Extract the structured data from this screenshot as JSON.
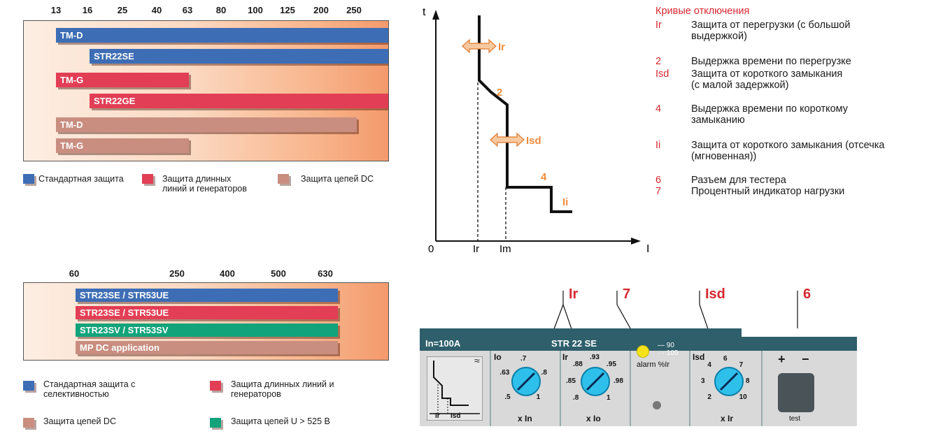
{
  "chart1": {
    "ticks": [
      "13",
      "16",
      "25",
      "40",
      "63",
      "80",
      "100",
      "125",
      "200",
      "250"
    ],
    "bars": [
      {
        "label": "TM-D",
        "color": "#3d6db5"
      },
      {
        "label": "STR22SE",
        "color": "#3d6db5"
      },
      {
        "label": "TM-G",
        "color": "#e23e55"
      },
      {
        "label": "STR22GE",
        "color": "#e23e55"
      },
      {
        "label": "TM-D",
        "color": "#c98e80"
      },
      {
        "label": "TM-G",
        "color": "#c98e80"
      }
    ],
    "legend": [
      {
        "text": "Стандартная защита",
        "color": "#3d6db5"
      },
      {
        "text": "Защита  длинных\nлиний и генераторов",
        "color": "#e23e55"
      },
      {
        "text": "Защита цепей DC",
        "color": "#c98e80"
      }
    ]
  },
  "chart2": {
    "ticks": [
      "60",
      "250",
      "400",
      "500",
      "630"
    ],
    "bars": [
      {
        "label": "STR23SE / STR53UE",
        "color": "#3d6db5"
      },
      {
        "label": "STR23SE / STR53UE",
        "color": "#e23e55"
      },
      {
        "label": "STR23SV / STR53SV",
        "color": "#12a37a"
      },
      {
        "label": "MP DC application",
        "color": "#c98e80"
      }
    ],
    "legend": [
      {
        "text": "Стандартная защита с\nселективностью",
        "color": "#3d6db5"
      },
      {
        "text": "Защита длинных линий и\nгенераторов",
        "color": "#e23e55"
      },
      {
        "text": "Защита цепей DC",
        "color": "#c98e80"
      },
      {
        "text": "Защита цепей U > 525 B",
        "color": "#12a37a"
      }
    ]
  },
  "curve": {
    "t_label": "t",
    "i_label": "I",
    "zero": "0",
    "ir": "Ir",
    "im": "Im",
    "labels": {
      "ir": "Ir",
      "n2": "2",
      "isd": "Isd",
      "n4": "4",
      "ii": "Ii"
    },
    "accent": "#f08a3c"
  },
  "legend_text": {
    "title": "Кривые отключения",
    "items": [
      {
        "code": "Ir",
        "text": "Защита от перегрузки (с большой\nвыдержкой)"
      },
      {
        "code": "2",
        "text": "Выдержка времени по перегрузке"
      },
      {
        "code": "Isd",
        "text": "Защита от короткого замыкания\n(с малой задержкой)"
      },
      {
        "code": "4",
        "text": "Выдержка времени по короткому\nзамыканию"
      },
      {
        "code": "Ii",
        "text": "Защита от короткого замыкания (отсечка\n(мгновенная))"
      },
      {
        "code": "6",
        "text": "Разъем для тестера"
      },
      {
        "code": "7",
        "text": "Процентный индикатор нагрузки"
      }
    ]
  },
  "panel": {
    "callouts": {
      "ir": "Ir",
      "seven": "7",
      "isd": "Isd",
      "six": "6"
    },
    "in_label": "In=100A",
    "model": "STR 22 SE",
    "alarm": "alarm %Ir",
    "led_90": "90",
    "led_105": "105",
    "dial1": {
      "name": "Io",
      "values": [
        ".5",
        ".63",
        ".7",
        ".8",
        "1"
      ],
      "unit": "x In"
    },
    "dial2": {
      "name": "Ir",
      "values": [
        ".8",
        ".85",
        ".88",
        ".93",
        ".95",
        ".98",
        "1"
      ],
      "unit": "x Io"
    },
    "dial3": {
      "name": "Isd",
      "values": [
        "2",
        "3",
        "4",
        "6",
        "7",
        "8",
        "10"
      ],
      "unit": "x Ir"
    },
    "curve_labels": {
      "ir": "Ir",
      "isd": "Isd"
    },
    "test": "test",
    "plus": "+",
    "minus": "−"
  }
}
